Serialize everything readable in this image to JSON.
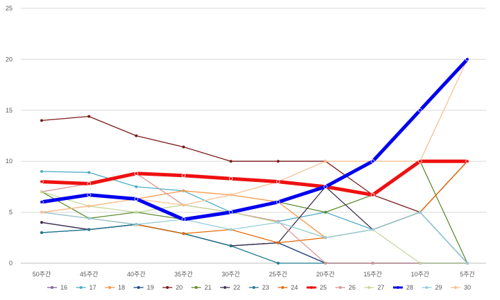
{
  "chart_data": {
    "type": "line",
    "title": "",
    "xlabel": "",
    "ylabel": "",
    "categories": [
      "50주간",
      "45주간",
      "40주간",
      "35주간",
      "30주간",
      "25주간",
      "20주간",
      "15주간",
      "10주간",
      "5주간"
    ],
    "ylim": [
      0,
      25
    ],
    "yticks": [
      0,
      5,
      10,
      15,
      20,
      25
    ],
    "grid": true,
    "legend_position": "bottom",
    "series": [
      {
        "name": "16",
        "color": "#8064A2",
        "width": 1.3,
        "values": [
          4,
          3.3,
          3.8,
          2.9,
          1.7,
          2,
          0,
          0,
          0,
          0
        ]
      },
      {
        "name": "17",
        "color": "#4BACC6",
        "width": 1.3,
        "values": [
          9,
          8.9,
          7.5,
          7.1,
          5,
          4.1,
          5,
          3.3,
          5,
          0
        ]
      },
      {
        "name": "18",
        "color": "#F79646",
        "width": 1.3,
        "values": [
          5,
          5.6,
          6.3,
          7.1,
          6.7,
          6,
          2.5,
          3.3,
          5,
          10
        ]
      },
      {
        "name": "19",
        "color": "#1F497D",
        "width": 1.3,
        "values": [
          3,
          3.3,
          3.8,
          2.9,
          1.7,
          2,
          0,
          0,
          0,
          0
        ]
      },
      {
        "name": "20",
        "color": "#7B1A1A",
        "width": 1.3,
        "values": [
          14,
          14.4,
          12.5,
          11.4,
          10,
          10,
          10,
          6.7,
          5,
          10
        ]
      },
      {
        "name": "21",
        "color": "#5E8C31",
        "width": 1.3,
        "values": [
          7,
          4.4,
          5,
          4.3,
          5,
          6,
          5,
          6.7,
          10,
          0
        ]
      },
      {
        "name": "22",
        "color": "#403151",
        "width": 1.3,
        "values": [
          4,
          3.3,
          3.8,
          2.9,
          1.7,
          2,
          7.5,
          3.3,
          5,
          0
        ]
      },
      {
        "name": "23",
        "color": "#1F7A8C",
        "width": 1.3,
        "values": [
          3,
          3.3,
          3.8,
          2.9,
          1.7,
          0,
          0,
          0,
          0,
          0
        ]
      },
      {
        "name": "24",
        "color": "#E46C0A",
        "width": 1.3,
        "values": [
          5,
          4.4,
          3.8,
          2.9,
          3.3,
          2,
          2.5,
          3.3,
          5,
          10
        ]
      },
      {
        "name": "25",
        "color": "#EE1111",
        "width": 5,
        "values": [
          8,
          7.8,
          8.8,
          8.6,
          8.3,
          8,
          7.5,
          6.7,
          10,
          10
        ]
      },
      {
        "name": "26",
        "color": "#D99694",
        "width": 1.3,
        "values": [
          7,
          7.8,
          8.8,
          5.7,
          5,
          4.1,
          0,
          0,
          0,
          0
        ]
      },
      {
        "name": "27",
        "color": "#C4D79B",
        "width": 1.3,
        "values": [
          7,
          5.6,
          5,
          5.7,
          5,
          4,
          2.5,
          3.3,
          0,
          0
        ]
      },
      {
        "name": "28",
        "color": "#0000EE",
        "width": 5,
        "values": [
          6,
          6.7,
          6.3,
          4.3,
          5,
          6,
          7.5,
          10,
          15,
          20
        ]
      },
      {
        "name": "29",
        "color": "#92CDDC",
        "width": 1.3,
        "values": [
          5,
          4.4,
          3.8,
          4.3,
          3.3,
          4,
          2.5,
          3.3,
          5,
          0
        ]
      },
      {
        "name": "30",
        "color": "#FAC090",
        "width": 1.3,
        "values": [
          5,
          5.6,
          6.3,
          5.7,
          6.7,
          8,
          10,
          10,
          10,
          20
        ]
      }
    ]
  }
}
